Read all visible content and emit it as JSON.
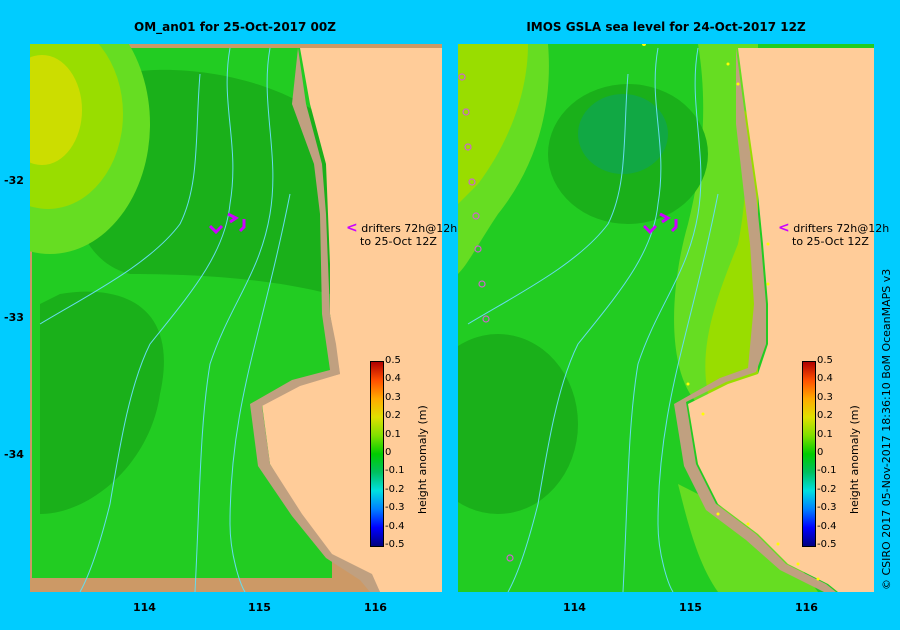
{
  "panels": [
    {
      "title": "OM_an01  for 25-Oct-2017 00Z"
    },
    {
      "title": "IMOS  GSLA sea level   for 24-Oct-2017 12Z"
    }
  ],
  "annotation": {
    "line1": "drifters 72h@12h",
    "line2": "to 25-Oct 12Z",
    "arrow": "<"
  },
  "axes": {
    "lat_ticks": [
      "-32",
      "-33",
      "-34"
    ],
    "lon_ticks": [
      "114",
      "115",
      "116"
    ]
  },
  "colorbar": {
    "label": "height anomaly (m)",
    "ticks": [
      "0.5",
      "0.4",
      "0.3",
      "0.2",
      "0.1",
      "0",
      "-0.1",
      "-0.2",
      "-0.3",
      "-0.4",
      "-0.5"
    ],
    "colors": [
      "#000080",
      "#0000ff",
      "#0080ff",
      "#00e0e0",
      "#00c060",
      "#00cc00",
      "#80e000",
      "#e0e000",
      "#ffaa00",
      "#ff5000",
      "#b00000"
    ]
  },
  "copyright": "© CSIRO 2017   05-Nov-2017 18:36:10 BoM OceanMAPS v3",
  "colors": {
    "land": "#ffcc99",
    "shelf": "#c0a080",
    "ocean_green": "#22cc22",
    "bathy": "#66ddee",
    "drifter": "#cc00ff",
    "frame": "#00ccff"
  }
}
